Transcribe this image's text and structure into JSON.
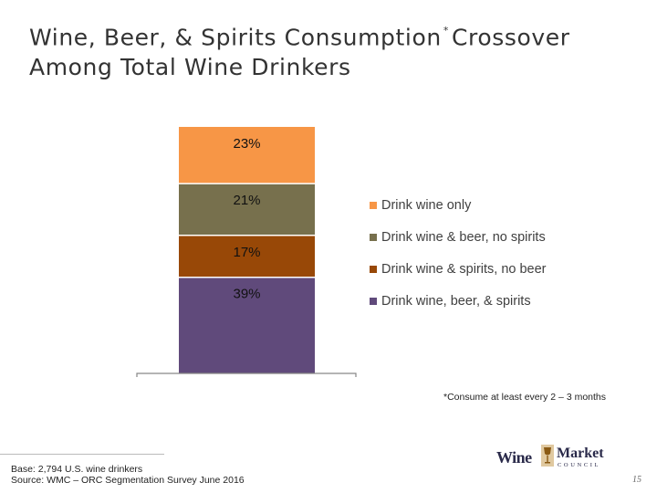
{
  "slide": {
    "title_line1_pre": "Wine, Beer, & Spirits Consumption",
    "title_sup": "*",
    "title_line1_post": "Crossover",
    "title_line2": "Among Total Wine Drinkers",
    "footnote": "*Consume at least every 2 – 3 months",
    "base": "Base: 2,794 U.S. wine drinkers",
    "source": "Source: WMC – ORC Segmentation Survey June 2016",
    "page_number": "15",
    "logo_word_wine": "Wine",
    "logo_word_market": "Market",
    "logo_word_council": "COUNCIL"
  },
  "chart_data": {
    "type": "bar",
    "stacked": true,
    "categories": [
      ""
    ],
    "ylim": [
      0,
      100
    ],
    "grid": false,
    "legend_placement": "right",
    "series": [
      {
        "name": "Drink wine, beer, & spirits",
        "values": [
          39
        ],
        "label": "39%",
        "color": "#604a7b"
      },
      {
        "name": "Drink wine & spirits, no beer",
        "values": [
          17
        ],
        "label": "17%",
        "color": "#984807"
      },
      {
        "name": "Drink wine & beer, no spirits",
        "values": [
          21
        ],
        "label": "21%",
        "color": "#77704d"
      },
      {
        "name": "Drink wine only",
        "values": [
          23
        ],
        "label": "23%",
        "color": "#f79646"
      }
    ],
    "legend_order": [
      3,
      2,
      1,
      0
    ]
  }
}
